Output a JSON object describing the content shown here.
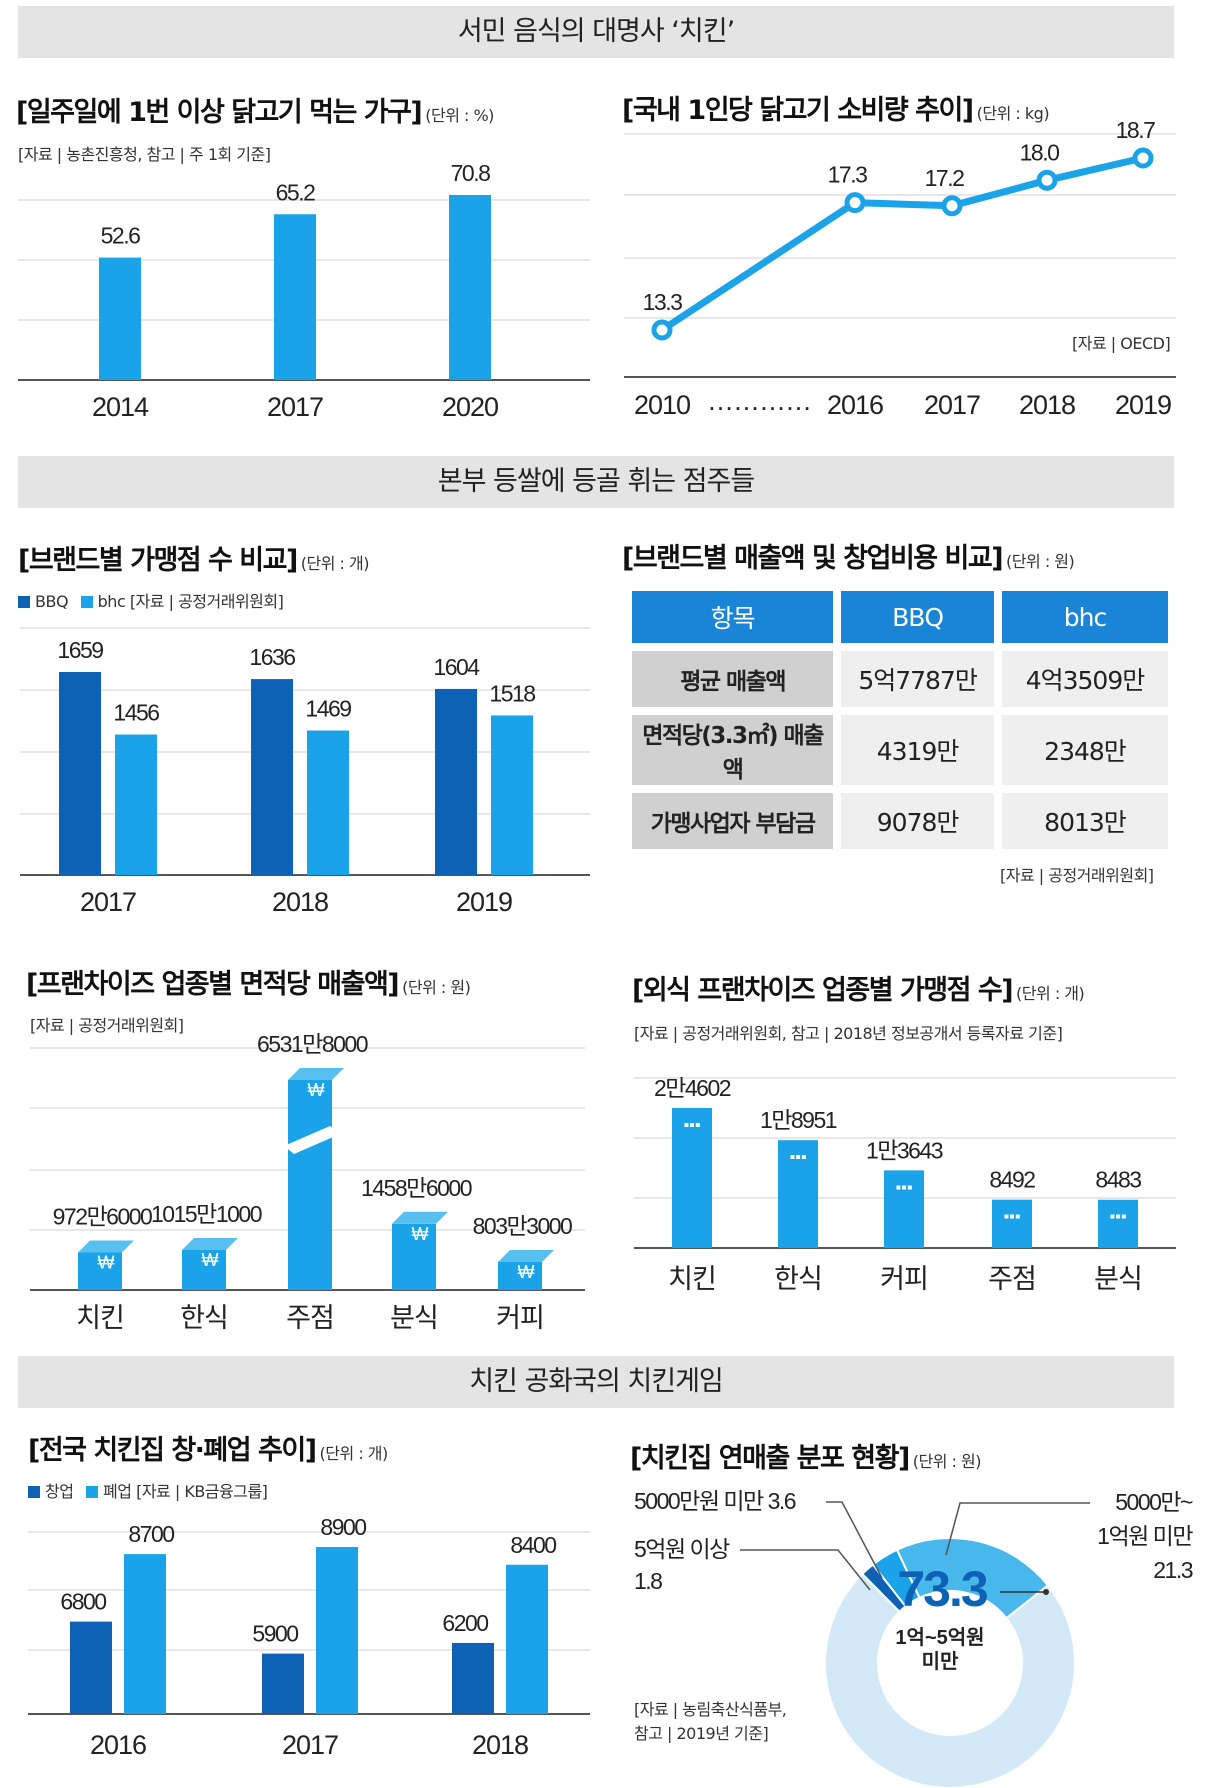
{
  "banners": {
    "b1": "서민 음식의 대명사 ‘치킨’",
    "b2": "본부 등쌀에 등골 휘는 점주들",
    "b3": "치킨 공화국의 치킨게임"
  },
  "colors": {
    "dark_blue": "#0d62b6",
    "light_blue": "#1aa3e8",
    "pale_blue": "#d6eaf8",
    "header_blue": "#1a84d6"
  },
  "panel1": {
    "title": "[일주일에 1번 이상 닭고기 먹는 가구]",
    "unit": "(단위 : %)",
    "source": "[자료 | 농촌진흥청, 참고 | 주 1회 기준]",
    "chart_data": {
      "type": "bar",
      "categories": [
        "2014",
        "2017",
        "2020"
      ],
      "values": [
        52.6,
        65.2,
        70.8
      ],
      "labels": [
        "52.6",
        "65.2",
        "70.8"
      ],
      "ylim": [
        0,
        80
      ],
      "title": "일주일에 1번 이상 닭고기 먹는 가구",
      "ylabel": "%"
    }
  },
  "panel2": {
    "title": "[국내 1인당 닭고기 소비량 추이]",
    "unit": "(단위 : kg)",
    "source": "[자료 | OECD]",
    "gap_dots": "…………",
    "chart_data": {
      "type": "line",
      "x": [
        "2010",
        "2016",
        "2017",
        "2018",
        "2019"
      ],
      "values": [
        13.3,
        17.3,
        17.2,
        18.0,
        18.7
      ],
      "labels": [
        "13.3",
        "17.3",
        "17.2",
        "18.0",
        "18.7"
      ],
      "ylim": [
        11,
        20
      ],
      "ylabel": "kg"
    }
  },
  "panel3": {
    "title": "[브랜드별 가맹점 수 비교]",
    "unit": "(단위 : 개)",
    "legend": {
      "bbq": "BBQ",
      "bhc": "bhc",
      "source": "[자료 | 공정거래위원회]"
    },
    "chart_data": {
      "type": "bar",
      "categories": [
        "2017",
        "2018",
        "2019"
      ],
      "series": [
        {
          "name": "BBQ",
          "values": [
            1659,
            1636,
            1604
          ]
        },
        {
          "name": "bhc",
          "values": [
            1456,
            1469,
            1518
          ]
        }
      ],
      "ylim": [
        500,
        1800
      ],
      "ylabel": "개"
    }
  },
  "panel4": {
    "title": "[브랜드별 매출액 및 창업비용 비교]",
    "unit": "(단위 : 원)",
    "source": "[자료 | 공정거래위원회]",
    "headers": [
      "항목",
      "BBQ",
      "bhc"
    ],
    "rows": [
      {
        "label": "평균 매출액",
        "bbq": "5억7787만",
        "bhc": "4억3509만"
      },
      {
        "label": "면적당(3.3㎡) 매출액",
        "bbq": "4319만",
        "bhc": "2348만"
      },
      {
        "label": "가맹사업자 부담금",
        "bbq": "9078만",
        "bhc": "8013만"
      }
    ]
  },
  "panel5": {
    "title": "[프랜차이즈 업종별 면적당 매출액]",
    "unit": "(단위 : 원)",
    "source": "[자료 | 공정거래위원회]",
    "chart_data": {
      "type": "bar",
      "categories": [
        "치킨",
        "한식",
        "주점",
        "분식",
        "커피"
      ],
      "values": [
        9726000,
        10151000,
        65318000,
        14586000,
        8033000
      ],
      "labels": [
        "972만6000",
        "1015만1000",
        "6531만8000",
        "1458만6000",
        "803만3000"
      ],
      "axis_break": "주점",
      "ylabel": "원"
    }
  },
  "panel6": {
    "title": "[외식 프랜차이즈 업종별 가맹점 수]",
    "unit": "(단위 : 개)",
    "source": "[자료 | 공정거래위원회, 참고 | 2018년 정보공개서 등록자료 기준]",
    "chart_data": {
      "type": "bar",
      "categories": [
        "치킨",
        "한식",
        "커피",
        "주점",
        "분식"
      ],
      "values": [
        24602,
        18951,
        13643,
        8492,
        8483
      ],
      "labels": [
        "2만4602",
        "1만8951",
        "1만3643",
        "8492",
        "8483"
      ],
      "ylabel": "개"
    }
  },
  "panel7": {
    "title": "[전국 치킨집 창·폐업 추이]",
    "unit": "(단위 : 개)",
    "legend": {
      "open": "창업",
      "close": "폐업",
      "source": "[자료 | KB금융그룹]"
    },
    "chart_data": {
      "type": "bar",
      "categories": [
        "2016",
        "2017",
        "2018"
      ],
      "series": [
        {
          "name": "창업",
          "values": [
            6800,
            5900,
            6200
          ]
        },
        {
          "name": "폐업",
          "values": [
            8700,
            8900,
            8400
          ]
        }
      ],
      "ylim": [
        3000,
        10000
      ],
      "ylabel": "개"
    }
  },
  "panel8": {
    "title": "[치킨집 연매출 분포 현황]",
    "unit": "(단위 : 원)",
    "source_l1": "[자료 | 농림축산식품부,",
    "source_l2": "참고 | 2019년 기준]",
    "labels": {
      "under50m": "5000만원 미만 3.6",
      "over500m_l1": "5억원 이상",
      "over500m_l2": "1.8",
      "r50_100m_l1": "5000만~",
      "r50_100m_l2": "1억원 미만",
      "r50_100m_l3": "21.3",
      "center_value": "73.3",
      "center_l1": "1억~5억원",
      "center_l2": "미만"
    },
    "chart_data": {
      "type": "pie",
      "categories": [
        "1억~5억원 미만",
        "5억원 이상",
        "5000만원 미만",
        "5000만~1억원 미만"
      ],
      "values": [
        73.3,
        1.8,
        3.6,
        21.3
      ],
      "ylabel": "%"
    }
  }
}
